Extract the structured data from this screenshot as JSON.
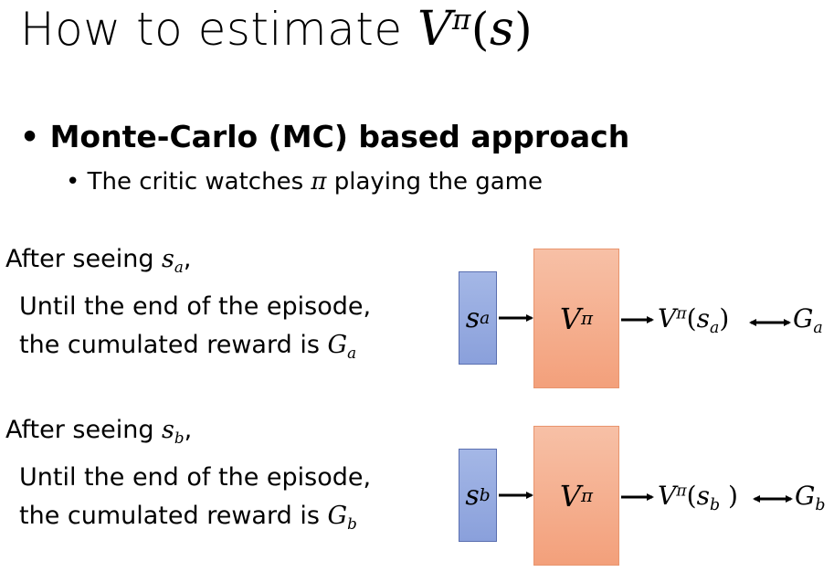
{
  "title": {
    "text": "How to estimate ",
    "math": {
      "base": "V",
      "sup": "π",
      "arg": "s"
    }
  },
  "bullets": [
    {
      "text": "Monte-Carlo (MC) based approach"
    },
    {
      "pre": "The critic watches ",
      "math": "π",
      "post": " playing the game"
    }
  ],
  "cases": [
    {
      "seen_prefix": "After seeing ",
      "state": {
        "base": "s",
        "sub": "a"
      },
      "seen_suffix": ",",
      "line1": "Until the end of the episode,",
      "line2_prefix": "the cumulated reward is ",
      "reward": {
        "base": "G",
        "sub": "a"
      },
      "diagram": {
        "input": {
          "base": "s",
          "sub": "a"
        },
        "model": {
          "base": "V",
          "sup": "π"
        },
        "output": {
          "base": "V",
          "sup": "π",
          "arg_base": "s",
          "arg_sub": "a"
        },
        "target": {
          "base": "G",
          "sub": "a"
        }
      }
    },
    {
      "seen_prefix": "After seeing ",
      "state": {
        "base": "s",
        "sub": "b"
      },
      "seen_suffix": ",",
      "line1": "Until the end of the episode,",
      "line2_prefix": "the cumulated reward is ",
      "reward": {
        "base": "G",
        "sub": "b"
      },
      "diagram": {
        "input": {
          "base": "s",
          "sub": "b"
        },
        "model": {
          "base": "V",
          "sup": "π"
        },
        "output": {
          "base": "V",
          "sup": "π",
          "arg_base": "s",
          "arg_sub": "b"
        },
        "target": {
          "base": "G",
          "sub": "b"
        }
      }
    }
  ],
  "colors": {
    "input_box": "#8aa0db",
    "model_box": "#f3a07b"
  }
}
